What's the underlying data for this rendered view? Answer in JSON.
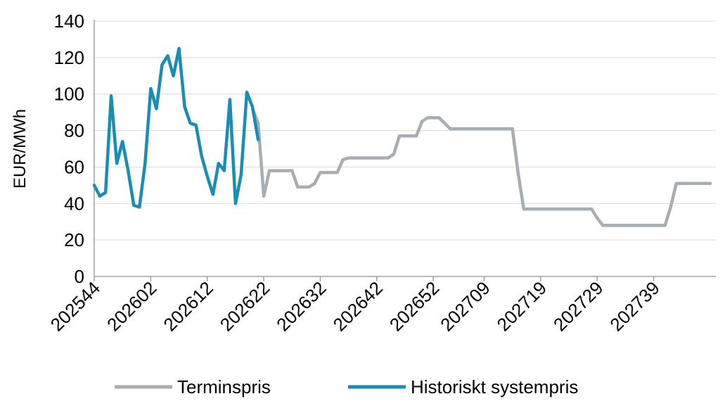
{
  "chart_data": {
    "type": "line",
    "ylabel": "EUR/MWh",
    "ylim": [
      0,
      140
    ],
    "yticks": [
      0,
      20,
      40,
      60,
      80,
      100,
      120,
      140
    ],
    "x_categories_labeled": [
      "202544",
      "202602",
      "202612",
      "202622",
      "202632",
      "202642",
      "202652",
      "202709",
      "202719",
      "202729",
      "202739"
    ],
    "grid": "horizontal",
    "legend_position": "bottom",
    "colors": {
      "terminspris": "#a6aeb3",
      "systempris": "#1a8db4",
      "grid": "#d9d9d9"
    },
    "series": [
      {
        "name": "Terminspris",
        "x": [
          "202620",
          "202621",
          "202622",
          "202623",
          "202624",
          "202625",
          "202626",
          "202627",
          "202628",
          "202629",
          "202630",
          "202631",
          "202632",
          "202633",
          "202634",
          "202635",
          "202636",
          "202637",
          "202638",
          "202639",
          "202640",
          "202641",
          "202642",
          "202643",
          "202644",
          "202645",
          "202646",
          "202647",
          "202648",
          "202649",
          "202650",
          "202651",
          "202652",
          "202701",
          "202702",
          "202703",
          "202704",
          "202705",
          "202706",
          "202707",
          "202708",
          "202709",
          "202710",
          "202711",
          "202712",
          "202713",
          "202714",
          "202715",
          "202716",
          "202717",
          "202718",
          "202719",
          "202720",
          "202721",
          "202722",
          "202723",
          "202724",
          "202725",
          "202726",
          "202727",
          "202728",
          "202729",
          "202730",
          "202731",
          "202732",
          "202733",
          "202734",
          "202735",
          "202736",
          "202737",
          "202738",
          "202739",
          "202740",
          "202741",
          "202742",
          "202743",
          "202744",
          "202745",
          "202746",
          "202747",
          "202748",
          "202749"
        ],
        "values": [
          92,
          84,
          44,
          58,
          58,
          58,
          58,
          58,
          49,
          49,
          49,
          51,
          57,
          57,
          57,
          57,
          64,
          65,
          65,
          65,
          65,
          65,
          65,
          65,
          65,
          67,
          77,
          77,
          77,
          77,
          85,
          87,
          87,
          87,
          84,
          81,
          81,
          81,
          81,
          81,
          81,
          81,
          81,
          81,
          81,
          81,
          81,
          57,
          37,
          37,
          37,
          37,
          37,
          37,
          37,
          37,
          37,
          37,
          37,
          37,
          37,
          32,
          28,
          28,
          28,
          28,
          28,
          28,
          28,
          28,
          28,
          28,
          28,
          28,
          38,
          51,
          51,
          51,
          51,
          51,
          51,
          51
        ]
      },
      {
        "name": "Historiskt systempris",
        "x": [
          "202544",
          "202545",
          "202546",
          "202547",
          "202548",
          "202549",
          "202550",
          "202551",
          "202552",
          "202601",
          "202602",
          "202603",
          "202604",
          "202605",
          "202606",
          "202607",
          "202608",
          "202609",
          "202610",
          "202611",
          "202612",
          "202613",
          "202614",
          "202615",
          "202616",
          "202617",
          "202618",
          "202619",
          "202620",
          "202621",
          "202622"
        ],
        "values": [
          50,
          44,
          46,
          99,
          62,
          74,
          58,
          39,
          38,
          62,
          103,
          92,
          116,
          121,
          110,
          125,
          93,
          84,
          83,
          66,
          55,
          45,
          62,
          58,
          97,
          40,
          56,
          101,
          93,
          75,
          null
        ]
      }
    ]
  }
}
